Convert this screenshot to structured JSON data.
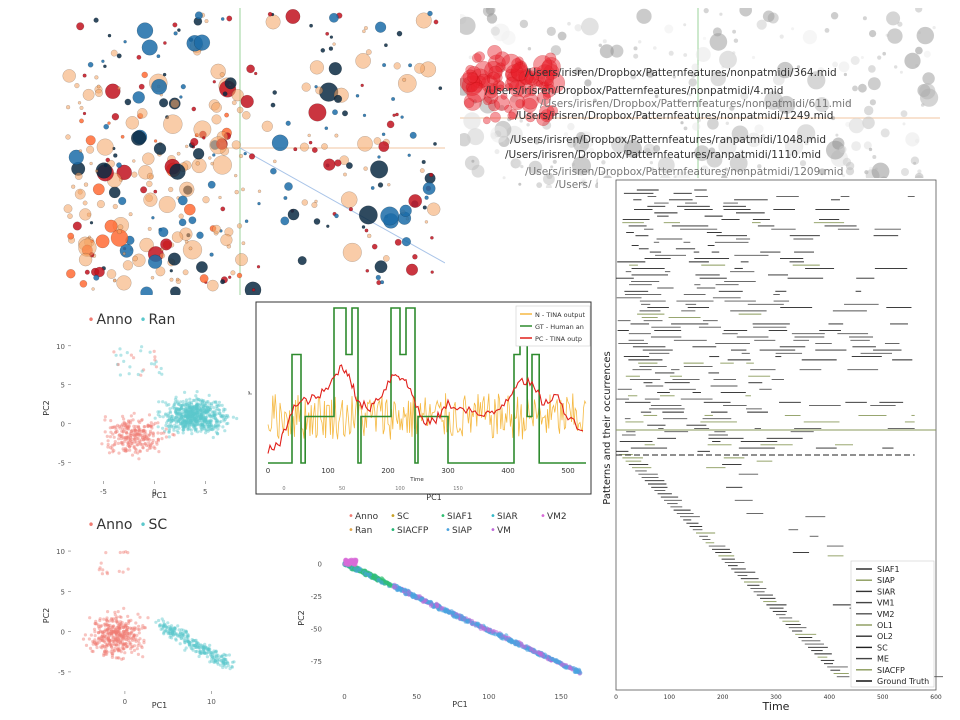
{
  "panel_bubbles": {
    "colors": [
      "#f4a261",
      "#1b6ca8",
      "#c1121f",
      "#ff6b35",
      "#0a2a43"
    ]
  },
  "panel_labels": {
    "labels": [
      "/Users/irisren/Dropbox/Patternfeatures/nonpatmidi/364.mid",
      "/Users/irisren/Dropbox/Patternfeatures/nonpatmidi/4.mid",
      "/Users/irisren/Dropbox/Patternfeatures/nonpatmidi/611.mid",
      "/Users/irisren/Dropbox/Patternfeatures/nonpatmidi/1249.mid",
      "/Users/irisren/Dropbox/Patternfeatures/ranpatmidi/1048.mid",
      "/Users/irisren/Dropbox/Patternfeatures/ranpatmidi/1110.mid",
      "/Users/irisren/Dropbox/Patternfeatures/nonpatmidi/1209.mid",
      "/Users/"
    ]
  },
  "chart_data": [
    {
      "type": "scatter",
      "legend": [
        "Anno",
        "Ran"
      ],
      "legend_colors": [
        "#f07c73",
        "#5bc8cc"
      ],
      "xlabel": "PC1",
      "ylabel": "PC2",
      "xticks": [
        -5,
        0,
        5
      ],
      "yticks": [
        10,
        5,
        0,
        -5
      ],
      "xlim": [
        -8,
        9
      ],
      "ylim": [
        -7,
        11
      ]
    },
    {
      "type": "line",
      "xlabel": "Time",
      "ylabel": "P",
      "xticks": [
        0,
        100,
        200,
        300,
        400,
        500
      ],
      "xlim": [
        0,
        530
      ],
      "ylim": [
        0,
        1
      ],
      "legend_location": "top-right",
      "series": [
        {
          "name": "N - TINA output",
          "color": "#f5b942"
        },
        {
          "name": "GT - Human an",
          "color": "#2e8b2e"
        },
        {
          "name": "PC - TINA outp",
          "color": "#e0201b"
        }
      ],
      "gt_steps": [
        [
          0,
          0
        ],
        [
          40,
          0
        ],
        [
          40,
          0.7
        ],
        [
          55,
          0.7
        ],
        [
          55,
          0
        ],
        [
          62,
          0
        ],
        [
          62,
          0.3
        ],
        [
          110,
          0.3
        ],
        [
          110,
          1
        ],
        [
          130,
          1
        ],
        [
          130,
          0.7
        ],
        [
          140,
          0.7
        ],
        [
          140,
          1
        ],
        [
          150,
          1
        ],
        [
          150,
          0
        ],
        [
          155,
          0
        ],
        [
          155,
          0.3
        ],
        [
          205,
          0.3
        ],
        [
          205,
          1
        ],
        [
          220,
          1
        ],
        [
          220,
          0.7
        ],
        [
          230,
          0.7
        ],
        [
          230,
          1
        ],
        [
          245,
          1
        ],
        [
          245,
          0
        ],
        [
          250,
          0
        ],
        [
          250,
          0.3
        ],
        [
          300,
          0.3
        ],
        [
          300,
          0
        ],
        [
          410,
          0
        ],
        [
          410,
          0.7
        ],
        [
          420,
          0.7
        ],
        [
          420,
          1
        ],
        [
          432,
          1
        ],
        [
          432,
          0.3
        ],
        [
          440,
          0.3
        ],
        [
          440,
          0.7
        ],
        [
          452,
          0.7
        ],
        [
          452,
          0
        ],
        [
          530,
          0
        ]
      ],
      "pc_points": [
        [
          0,
          0.08
        ],
        [
          20,
          0.12
        ],
        [
          40,
          0.35
        ],
        [
          60,
          0.4
        ],
        [
          80,
          0.42
        ],
        [
          100,
          0.48
        ],
        [
          120,
          0.62
        ],
        [
          135,
          0.58
        ],
        [
          150,
          0.38
        ],
        [
          170,
          0.36
        ],
        [
          190,
          0.45
        ],
        [
          210,
          0.58
        ],
        [
          225,
          0.55
        ],
        [
          240,
          0.45
        ],
        [
          260,
          0.25
        ],
        [
          280,
          0.28
        ],
        [
          300,
          0.38
        ],
        [
          330,
          0.35
        ],
        [
          360,
          0.3
        ],
        [
          380,
          0.33
        ],
        [
          400,
          0.42
        ],
        [
          420,
          0.55
        ],
        [
          440,
          0.5
        ],
        [
          460,
          0.38
        ],
        [
          480,
          0.44
        ],
        [
          500,
          0.3
        ],
        [
          530,
          0.2
        ]
      ],
      "n_band": [
        0.15,
        0.45
      ],
      "bottom_axis_label": "PC1",
      "bottom_axis_ticks": [
        0,
        50,
        100,
        150
      ]
    },
    {
      "type": "scatter",
      "legend": [
        "Anno",
        "SC"
      ],
      "legend_colors": [
        "#f07c73",
        "#5bc8cc"
      ],
      "xlabel": "PC1",
      "ylabel": "PC2",
      "xticks": [
        0,
        10
      ],
      "yticks": [
        10,
        5,
        0,
        -5
      ],
      "xlim": [
        -6,
        14
      ],
      "ylim": [
        -7,
        11
      ]
    },
    {
      "type": "scatter",
      "legend": [
        "Anno",
        "SC",
        "SIAF1",
        "SIAR",
        "VM2",
        "Ran",
        "SIACFP",
        "SIAP",
        "VM"
      ],
      "legend_colors": [
        "#f07c73",
        "#c9a227",
        "#2fbf71",
        "#36b9c9",
        "#d96bd8",
        "#e0a64b",
        "#22b573",
        "#4aa3df",
        "#c06ad9"
      ],
      "xlabel": "PC1",
      "ylabel": "PC2",
      "xticks": [
        0,
        50,
        100,
        150
      ],
      "yticks": [
        0,
        -25,
        -50,
        -75
      ],
      "xlim": [
        -10,
        170
      ],
      "ylim": [
        -92,
        8
      ]
    },
    {
      "type": "bar",
      "xlabel": "Time",
      "ylabel": "Patterns and their occurrences",
      "xticks": [
        0,
        100,
        200,
        300,
        400,
        500,
        600
      ],
      "xlim": [
        0,
        600
      ],
      "legend": [
        "SIAF1",
        "SIAP",
        "SIAR",
        "VM1",
        "VM2",
        "OL1",
        "OL2",
        "SC",
        "ME",
        "SIACFP",
        "Ground Truth"
      ],
      "legend_colors": [
        "#222222",
        "#8a9a5b",
        "#333333",
        "#444444",
        "#555555",
        "#8a9a5b",
        "#333333",
        "#222222",
        "#444444",
        "#8a9a5b",
        "#000000"
      ]
    }
  ]
}
